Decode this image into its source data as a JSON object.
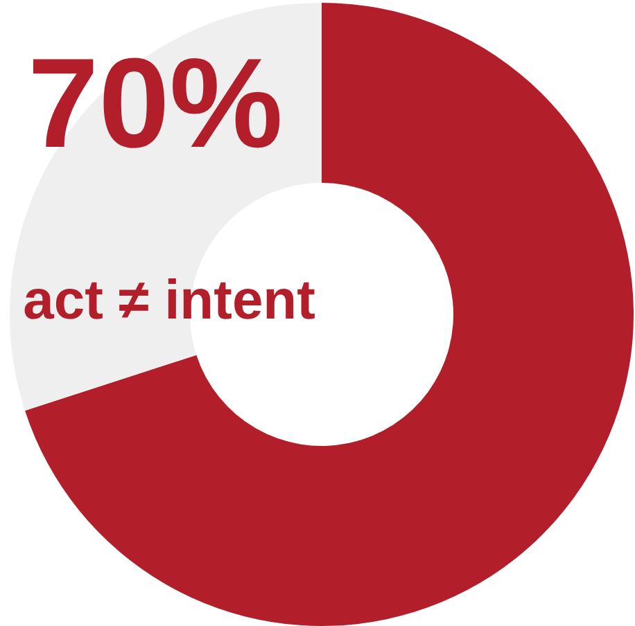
{
  "chart_data": {
    "type": "donut",
    "title": "70%",
    "categories": [
      null,
      null
    ],
    "values": [
      70,
      30
    ],
    "colors": [
      "#b21f2a",
      "#efefef"
    ],
    "annotations": [
      "act ≠ intent"
    ]
  }
}
